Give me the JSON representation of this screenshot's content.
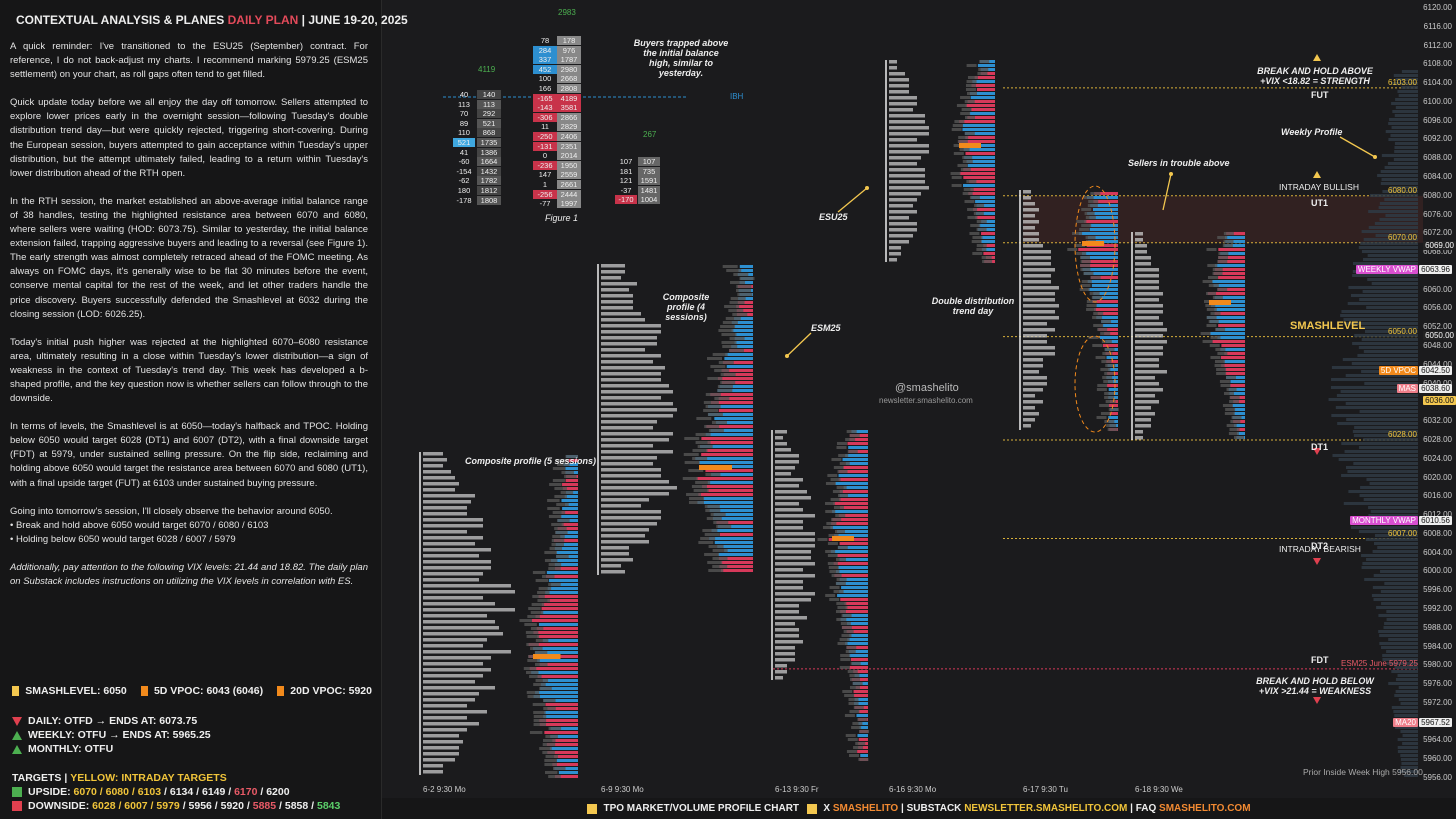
{
  "header": {
    "title": "CONTEXTUAL ANALYSIS & PLAN",
    "prefix": "ES",
    "plan": "DAILY PLAN",
    "date": "| JUNE 19-20, 2025"
  },
  "body": {
    "p1": "A quick reminder: I've transitioned to the ESU25 (September) contract. For reference, I do not back-adjust my charts. I recommend marking 5979.25 (ESM25 settlement) on your chart, as roll gaps often tend to get filled.",
    "p2": "Quick update today before we all enjoy the day off tomorrow. Sellers attempted to explore lower prices early in the overnight session—following Tuesday's double distribution trend day—but were quickly rejected, triggering short-covering. During the European session, buyers attempted to gain acceptance within Tuesday's upper distribution, but the attempt ultimately failed, leading to a return within Tuesday's lower distribution ahead of the RTH open.",
    "p3": "In the RTH session, the market established an above-average initial balance range of 38 handles, testing the highlighted resistance area between 6070 and 6080, where sellers were waiting (HOD: 6073.75). Similar to yesterday, the initial balance extension failed, trapping aggressive buyers and leading to a reversal (see Figure 1). The early strength was almost completely retraced ahead of the FOMC meeting. As always on FOMC days, it's generally wise to be flat 30 minutes before the event, conserve mental capital for the rest of the week, and let other traders handle the price discovery. Buyers successfully defended the Smashlevel at 6032 during the closing session (LOD: 6026.25).",
    "p4": "Today's initial push higher was rejected at the highlighted 6070–6080 resistance area, ultimately resulting in a close within Tuesday's lower distribution—a sign of weakness in the context of Tuesday's trend day. This week has developed a b-shaped profile, and the key question now is whether sellers can follow through to the downside.",
    "p5": "In terms of levels, the Smashlevel is at 6050—today's halfback and TPOC. Holding below 6050 would target 6028 (DT1) and 6007 (DT2), with a final downside target (FDT) at 5979, under sustained selling pressure. On the flip side, reclaiming and holding above 6050 would target the resistance area between 6070 and 6080 (UT1), with a final upside target (FUT) at 6103 under sustained buying pressure.",
    "p6": "Going into tomorrow's session, I'll closely observe the behavior around 6050.",
    "b1": "• Break and hold above 6050 would target 6070 / 6080 / 6103",
    "b2": "• Holding below 6050 would target 6028 / 6007 / 5979",
    "p7": "Additionally, pay attention to the following VIX levels: 21.44 and 18.82. The daily plan on Substack includes instructions on utilizing the VIX levels in correlation with ES."
  },
  "legend": {
    "smash": "SMASHLEVEL: 6050",
    "vpoc5": "5D VPOC: 6043 (6046)",
    "vpoc20": "20D VPOC: 5920",
    "daily": "DAILY: OTFD → ENDS AT: 6073.75",
    "weekly": "WEEKLY: OTFU → ENDS AT: 5965.25",
    "monthly": "MONTHLY: OTFU"
  },
  "targets": {
    "title": "TARGETS",
    "sep": "|",
    "yellow": "YELLOW: INTRADAY TARGETS",
    "up_label": "UPSIDE:",
    "up_y": "6070 / 6080 / 6103",
    "up_w": "/ 6134 / 6149 /",
    "up_r": "6170",
    "up_w2": "/ 6200",
    "dn_label": "DOWNSIDE:",
    "dn_y": "6028 / 6007 / 5979",
    "dn_w": "/ 5956 / 5920 /",
    "dn_r": "5885",
    "dn_w2": "/ 5858 /",
    "dn_g": "5843"
  },
  "colors": {
    "accent": "#f3c74f",
    "up": "#4caf50",
    "down": "#e0404f",
    "sell": "#d6395a",
    "buy": "#2d8fd0",
    "poc": "#f28a1c",
    "vwap": "#d94fd0"
  },
  "chart_data": {
    "type": "bar",
    "title": "TPO MARKET/VOLUME PROFILE CHART",
    "y_axis": {
      "min": 5956,
      "max": 6120,
      "ticks": [
        6120,
        6116,
        6112,
        6108,
        6104,
        6100,
        6096,
        6092,
        6088,
        6084,
        6080,
        6076,
        6072,
        6068,
        6064,
        6060,
        6056,
        6052,
        6048,
        6044,
        6040,
        6036,
        6032,
        6028,
        6024,
        6020,
        6016,
        6012,
        6008,
        6004,
        6000,
        5996,
        5992,
        5988,
        5984,
        5980,
        5976,
        5972,
        5968,
        5964,
        5960,
        5956
      ]
    },
    "x_labels": [
      "6-2  9:30 Mo",
      "6-9  9:30 Mo",
      "6-13  9:30 Fr",
      "6-16  9:30 Mo",
      "6-17  9:30 Tu",
      "6-18  9:30 We"
    ],
    "levels": [
      {
        "name": "FUT",
        "value": 6103.0,
        "label": "6103.00"
      },
      {
        "name": "UT1",
        "value": 6080.0,
        "label": "6080.00"
      },
      {
        "name": "UT1-low",
        "value": 6070.0,
        "label": "6070.00"
      },
      {
        "name": "SMASHLEVEL",
        "value": 6050.0,
        "label": "6050.00"
      },
      {
        "name": "DT1",
        "value": 6028.0,
        "label": "6028.00"
      },
      {
        "name": "DT2",
        "value": 6007.0,
        "label": "6007.00"
      },
      {
        "name": "FDT",
        "value": 5979.25,
        "label": "ESM25 June  5979.25"
      }
    ],
    "tags": [
      {
        "label": "6069.00",
        "value": 6069.0,
        "color": "#222"
      },
      {
        "label": "WEEKLY VWAP",
        "value": 6063.96,
        "color": "#d94fd0",
        "price": "6063.96"
      },
      {
        "label": "6050.00",
        "value": 6050.0,
        "color": "#222"
      },
      {
        "label": "5D VPOC",
        "value": 6042.5,
        "color": "#f28a1c",
        "price": "6042.50"
      },
      {
        "label": "MAS",
        "value": 6038.6,
        "color": "#ef7e8a",
        "price": "6038.60"
      },
      {
        "label": "6036.00",
        "value": 6036.0,
        "color": "#f3c74f"
      },
      {
        "label": "MONTHLY VWAP",
        "value": 6010.56,
        "color": "#d94fd0",
        "price": "6010.56"
      },
      {
        "label": "MA20",
        "value": 5967.52,
        "color": "#ef7e8a",
        "price": "5967.52"
      }
    ],
    "figure1": {
      "title": "Figure 1",
      "note": "Buyers trapped above the initial balance high, similar to yesterday.",
      "left_totals": [
        "40",
        "113",
        "70",
        "89",
        "110",
        "521",
        "41",
        "-60",
        "-154",
        "-62",
        "180",
        "-178"
      ],
      "left_vols": [
        "140",
        "113",
        "292",
        "521",
        "868",
        "1735",
        "1386",
        "1664",
        "1432",
        "1782",
        "1812",
        "1808"
      ],
      "mid_delta": [
        "78",
        "284",
        "337",
        "452",
        "100",
        "166",
        "-165",
        "-143",
        "-306",
        "11",
        "-250",
        "-131",
        "0",
        "-236",
        "147",
        "1",
        "-256",
        "-77"
      ],
      "mid_vol": [
        "178",
        "976",
        "1787",
        "2980",
        "2668",
        "2808",
        "4189",
        "3581",
        "2866",
        "2829",
        "2406",
        "2351",
        "2014",
        "1950",
        "2559",
        "2661",
        "2444",
        "1997"
      ],
      "right_delta": [
        "107",
        "181",
        "121",
        "-37",
        "-170"
      ],
      "right_vol": [
        "107",
        "735",
        "1591",
        "1481",
        "1004"
      ],
      "top_value": "2983",
      "side_value": "4119",
      "ibh": "IBH",
      "mid_value": "267"
    }
  },
  "annotations": {
    "comp5": "Composite profile (5 sessions)",
    "comp4": "Composite profile (4 sessions)",
    "esm25": "ESM25",
    "esu25": "ESU25",
    "dd": "Double distribution trend day",
    "sellers": "Sellers in trouble above",
    "weekly": "Weekly Profile",
    "break_above": "BREAK AND HOLD ABOVE +VIX <18.82 = STRENGTH",
    "break_below": "BREAK AND HOLD BELOW +VIX >21.44 = WEAKNESS",
    "bullish": "INTRADAY BULLISH",
    "bearish": "INTRADAY BEARISH",
    "prior_low": "Prior Inside Week High  5956.00",
    "handle": "@smashelito",
    "site": "newsletter.smashelito.com"
  },
  "footer": {
    "tpo": "TPO MARKET/VOLUME PROFILE CHART",
    "x": "X",
    "x_val": "SMASHELITO",
    "sub": "SUBSTACK",
    "sub_val": "NEWSLETTER.SMASHELITO.COM",
    "faq": "FAQ",
    "faq_val": "SMASHELITO.COM"
  }
}
